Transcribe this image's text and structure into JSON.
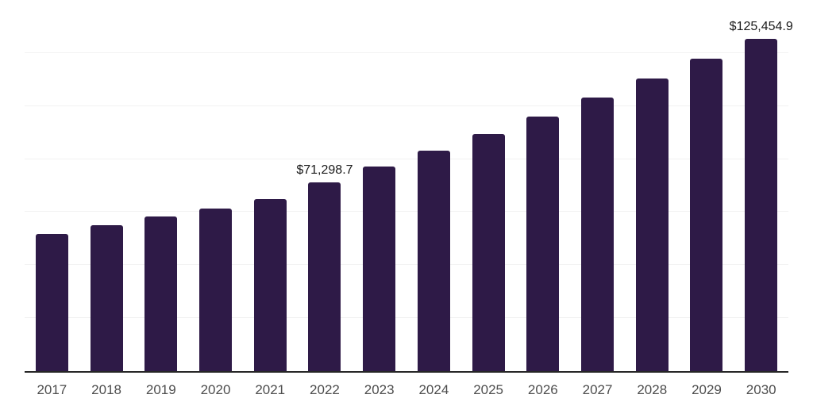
{
  "chart_data": {
    "type": "bar",
    "title": "",
    "xlabel": "",
    "ylabel": "",
    "categories": [
      "2017",
      "2018",
      "2019",
      "2020",
      "2021",
      "2022",
      "2023",
      "2024",
      "2025",
      "2026",
      "2027",
      "2028",
      "2029",
      "2030"
    ],
    "values": [
      51800,
      55200,
      58300,
      61400,
      64900,
      71298.7,
      77200,
      83100,
      89600,
      96100,
      103300,
      110300,
      118000,
      125454.9
    ],
    "ylim": [
      0,
      140000
    ],
    "gridline_step": 20000,
    "grid": "horizontal-only",
    "legend_position": "none",
    "annotations": [
      {
        "category": "2022",
        "text": "$71,298.7"
      },
      {
        "category": "2030",
        "text": "$125,454.9"
      }
    ]
  },
  "colors": {
    "background": "#ffffff",
    "bar": "#2e1a47",
    "gridline": "#f2f2f2",
    "axis_line": "#262626",
    "tick_label": "#4d4d4d",
    "data_label": "#1a1a1a"
  }
}
